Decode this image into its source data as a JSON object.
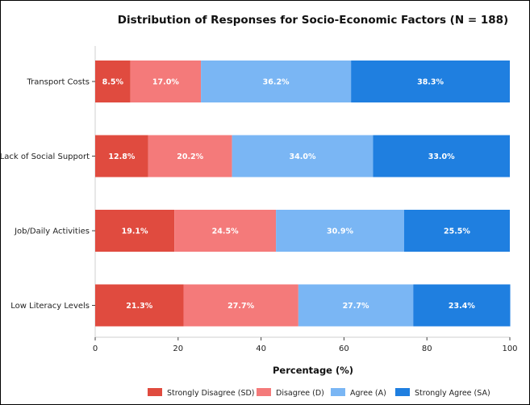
{
  "chart_data": {
    "type": "bar",
    "orientation": "horizontal",
    "stacked": true,
    "title": "Distribution of Responses for Socio-Economic Factors (N = 188)",
    "xlabel": "Percentage (%)",
    "ylabel": "",
    "xlim": [
      0,
      100
    ],
    "xticks": [
      0,
      20,
      40,
      60,
      80,
      100
    ],
    "grid": false,
    "legend_position": "bottom",
    "categories": [
      "Transport Costs",
      "Lack of Social Support",
      "Job/Daily Activities",
      "Low Literacy Levels"
    ],
    "series": [
      {
        "name": "Strongly Disagree (SD)",
        "color": "#e04b3f",
        "values": [
          8.5,
          12.8,
          19.1,
          21.3
        ],
        "labels": [
          "8.5%",
          "12.8%",
          "19.1%",
          "21.3%"
        ]
      },
      {
        "name": "Disagree (D)",
        "color": "#f47a7a",
        "values": [
          17.0,
          20.2,
          24.5,
          27.7
        ],
        "labels": [
          "17.0%",
          "20.2%",
          "24.5%",
          "27.7%"
        ]
      },
      {
        "name": "Agree (A)",
        "color": "#7ab6f4",
        "values": [
          36.2,
          34.0,
          30.9,
          27.7
        ],
        "labels": [
          "36.2%",
          "34.0%",
          "30.9%",
          "27.7%"
        ]
      },
      {
        "name": "Strongly Agree (SA)",
        "color": "#1f7fe0",
        "values": [
          38.3,
          33.0,
          25.5,
          23.4
        ],
        "labels": [
          "38.3%",
          "33.0%",
          "25.5%",
          "23.4%"
        ]
      }
    ]
  }
}
